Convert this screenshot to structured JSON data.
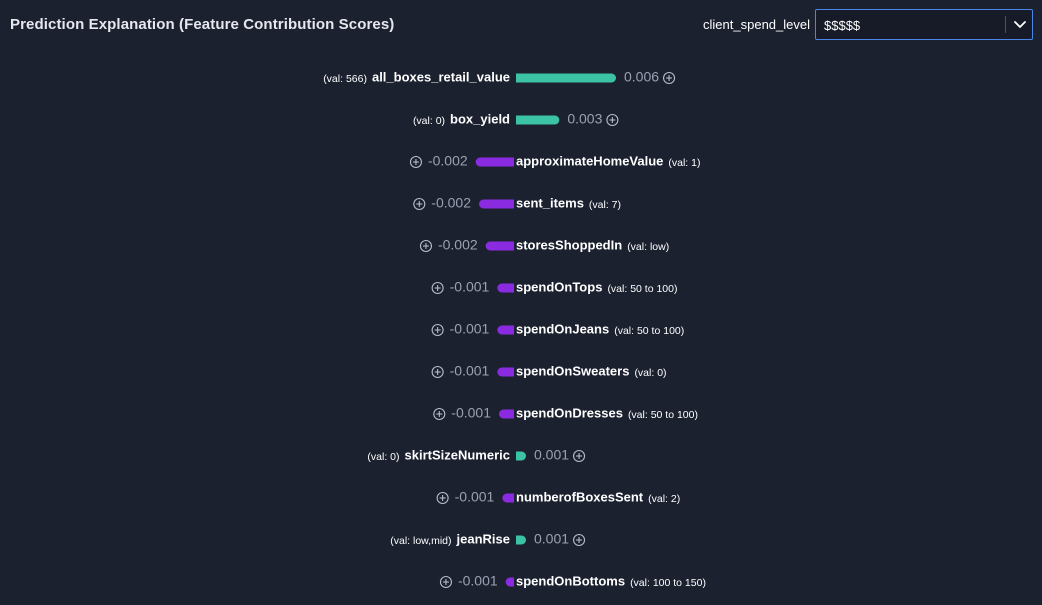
{
  "header": {
    "title": "Prediction Explanation (Feature Contribution Scores)",
    "select_label": "client_spend_level",
    "select_value": "$$$$$"
  },
  "colors": {
    "positive": "#3cc2a4",
    "negative": "#8a2be2",
    "value_text": "#9aa1b1",
    "label_text": "#ffffff",
    "background": "#1c2130"
  },
  "icons": {
    "expand": "circle-plus-icon",
    "dropdown": "chevron-down-icon"
  },
  "chart_data": {
    "type": "bar",
    "orientation": "horizontal-diverging",
    "title": "Prediction Explanation (Feature Contribution Scores)",
    "features": [
      {
        "name": "all_boxes_retail_value",
        "val": "(val: 566)",
        "score": 0.006,
        "label": "0.006"
      },
      {
        "name": "box_yield",
        "val": "(val: 0)",
        "score": 0.0026,
        "label": "0.003"
      },
      {
        "name": "approximateHomeValue",
        "val": "(val: 1)",
        "score": -0.0023,
        "label": "-0.002"
      },
      {
        "name": "sent_items",
        "val": "(val: 7)",
        "score": -0.0021,
        "label": "-0.002"
      },
      {
        "name": "storesShoppedIn",
        "val": "(val: low)",
        "score": -0.0017,
        "label": "-0.002"
      },
      {
        "name": "spendOnTops",
        "val": "(val: 50 to 100)",
        "score": -0.001,
        "label": "-0.001"
      },
      {
        "name": "spendOnJeans",
        "val": "(val: 50 to 100)",
        "score": -0.001,
        "label": "-0.001"
      },
      {
        "name": "spendOnSweaters",
        "val": "(val: 0)",
        "score": -0.001,
        "label": "-0.001"
      },
      {
        "name": "spendOnDresses",
        "val": "(val: 50 to 100)",
        "score": -0.0009,
        "label": "-0.001"
      },
      {
        "name": "skirtSizeNumeric",
        "val": "(val: 0)",
        "score": 0.0006,
        "label": "0.001"
      },
      {
        "name": "numberofBoxesSent",
        "val": "(val: 2)",
        "score": -0.0007,
        "label": "-0.001"
      },
      {
        "name": "jeanRise",
        "val": "(val: low,mid)",
        "score": 0.0006,
        "label": "0.001"
      },
      {
        "name": "spendOnBottoms",
        "val": "(val: 100 to 150)",
        "score": -0.0005,
        "label": "-0.001"
      }
    ]
  }
}
